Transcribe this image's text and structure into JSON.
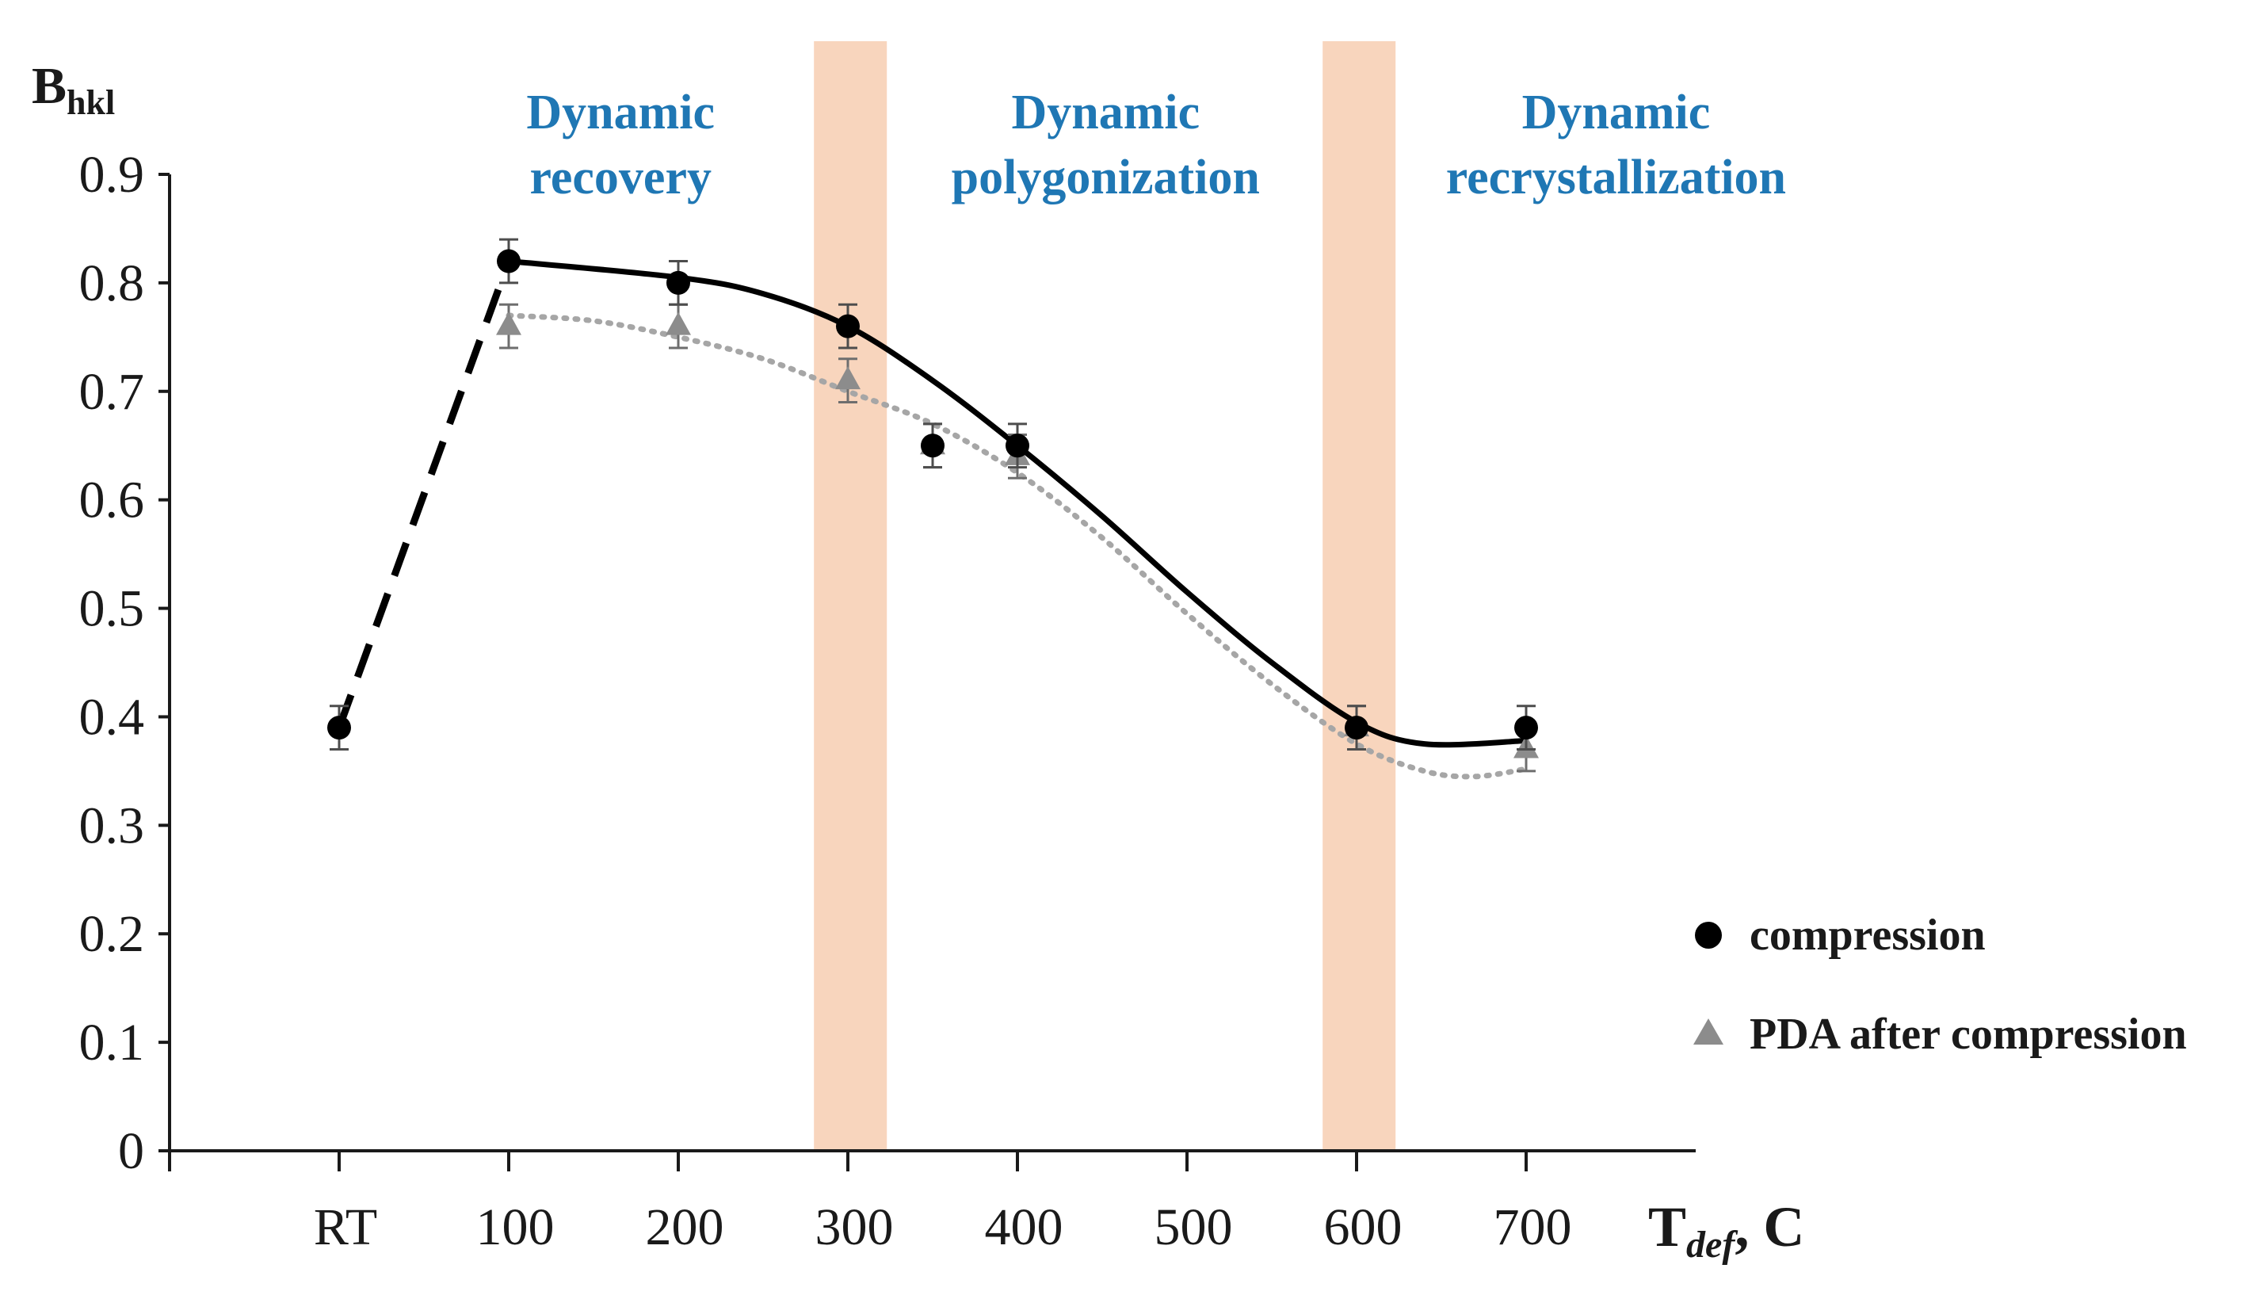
{
  "chart_data": {
    "type": "line",
    "title": "",
    "ylabel_main": "B",
    "ylabel_sub": "hkl",
    "xlabel_main": "T",
    "xlabel_sub": "def",
    "xlabel_suffix": ",  C",
    "ylim": [
      0,
      0.9
    ],
    "yticks": [
      "0",
      "0.1",
      "0.2",
      "0.3",
      "0.4",
      "0.5",
      "0.6",
      "0.7",
      "0.8",
      "0.9"
    ],
    "x_range": [
      -100,
      800
    ],
    "xticks": [
      {
        "label": "RT",
        "value": 0
      },
      {
        "label": "100",
        "value": 100
      },
      {
        "label": "200",
        "value": 200
      },
      {
        "label": "300",
        "value": 300
      },
      {
        "label": "400",
        "value": 400
      },
      {
        "label": "500",
        "value": 500
      },
      {
        "label": "600",
        "value": 600
      },
      {
        "label": "700",
        "value": 700
      }
    ],
    "bands": [
      {
        "from": 280,
        "to": 323,
        "color": "#f8d5bd"
      },
      {
        "from": 580,
        "to": 623,
        "color": "#f8d5bd"
      }
    ],
    "regions": [
      {
        "line1": "Dynamic",
        "line2": "recovery",
        "x": 166
      },
      {
        "line1": "Dynamic",
        "line2": "polygonization",
        "x": 452
      },
      {
        "line1": "Dynamic",
        "line2": "recrystallization",
        "x": 753
      }
    ],
    "series": [
      {
        "name": "compression",
        "marker": "circle",
        "color": "#000000",
        "points": [
          {
            "x": 0,
            "y": 0.39,
            "err": 0.02
          },
          {
            "x": 100,
            "y": 0.82,
            "err": 0.02
          },
          {
            "x": 200,
            "y": 0.8,
            "err": 0.02
          },
          {
            "x": 300,
            "y": 0.76,
            "err": 0.02
          },
          {
            "x": 350,
            "y": 0.65,
            "err": 0.02
          },
          {
            "x": 400,
            "y": 0.65,
            "err": 0.02
          },
          {
            "x": 600,
            "y": 0.39,
            "err": 0.02
          },
          {
            "x": 700,
            "y": 0.39,
            "err": 0.02
          }
        ],
        "dashed_line": [
          [
            0,
            0.39
          ],
          [
            100,
            0.82
          ]
        ],
        "trend_line": [
          [
            100,
            0.82
          ],
          [
            200,
            0.805
          ],
          [
            250,
            0.79
          ],
          [
            300,
            0.76
          ],
          [
            350,
            0.71
          ],
          [
            400,
            0.65
          ],
          [
            450,
            0.585
          ],
          [
            500,
            0.515
          ],
          [
            550,
            0.45
          ],
          [
            600,
            0.395
          ],
          [
            640,
            0.375
          ],
          [
            700,
            0.378
          ]
        ]
      },
      {
        "name": "PDA after compression",
        "marker": "triangle",
        "color": "#8c8c8c",
        "points": [
          {
            "x": 100,
            "y": 0.76,
            "err": 0.02
          },
          {
            "x": 200,
            "y": 0.76,
            "err": 0.02
          },
          {
            "x": 300,
            "y": 0.71,
            "err": 0.02
          },
          {
            "x": 350,
            "y": 0.65,
            "err": 0.02
          },
          {
            "x": 400,
            "y": 0.64,
            "err": 0.02
          },
          {
            "x": 600,
            "y": 0.39,
            "err": 0.02
          },
          {
            "x": 700,
            "y": 0.37,
            "err": 0.02
          }
        ],
        "trend_line": [
          [
            100,
            0.77
          ],
          [
            150,
            0.765
          ],
          [
            200,
            0.75
          ],
          [
            250,
            0.73
          ],
          [
            300,
            0.7
          ],
          [
            350,
            0.67
          ],
          [
            400,
            0.625
          ],
          [
            450,
            0.565
          ],
          [
            500,
            0.495
          ],
          [
            550,
            0.43
          ],
          [
            600,
            0.375
          ],
          [
            640,
            0.35
          ],
          [
            670,
            0.345
          ],
          [
            700,
            0.352
          ]
        ]
      }
    ],
    "legend_position": "right"
  }
}
